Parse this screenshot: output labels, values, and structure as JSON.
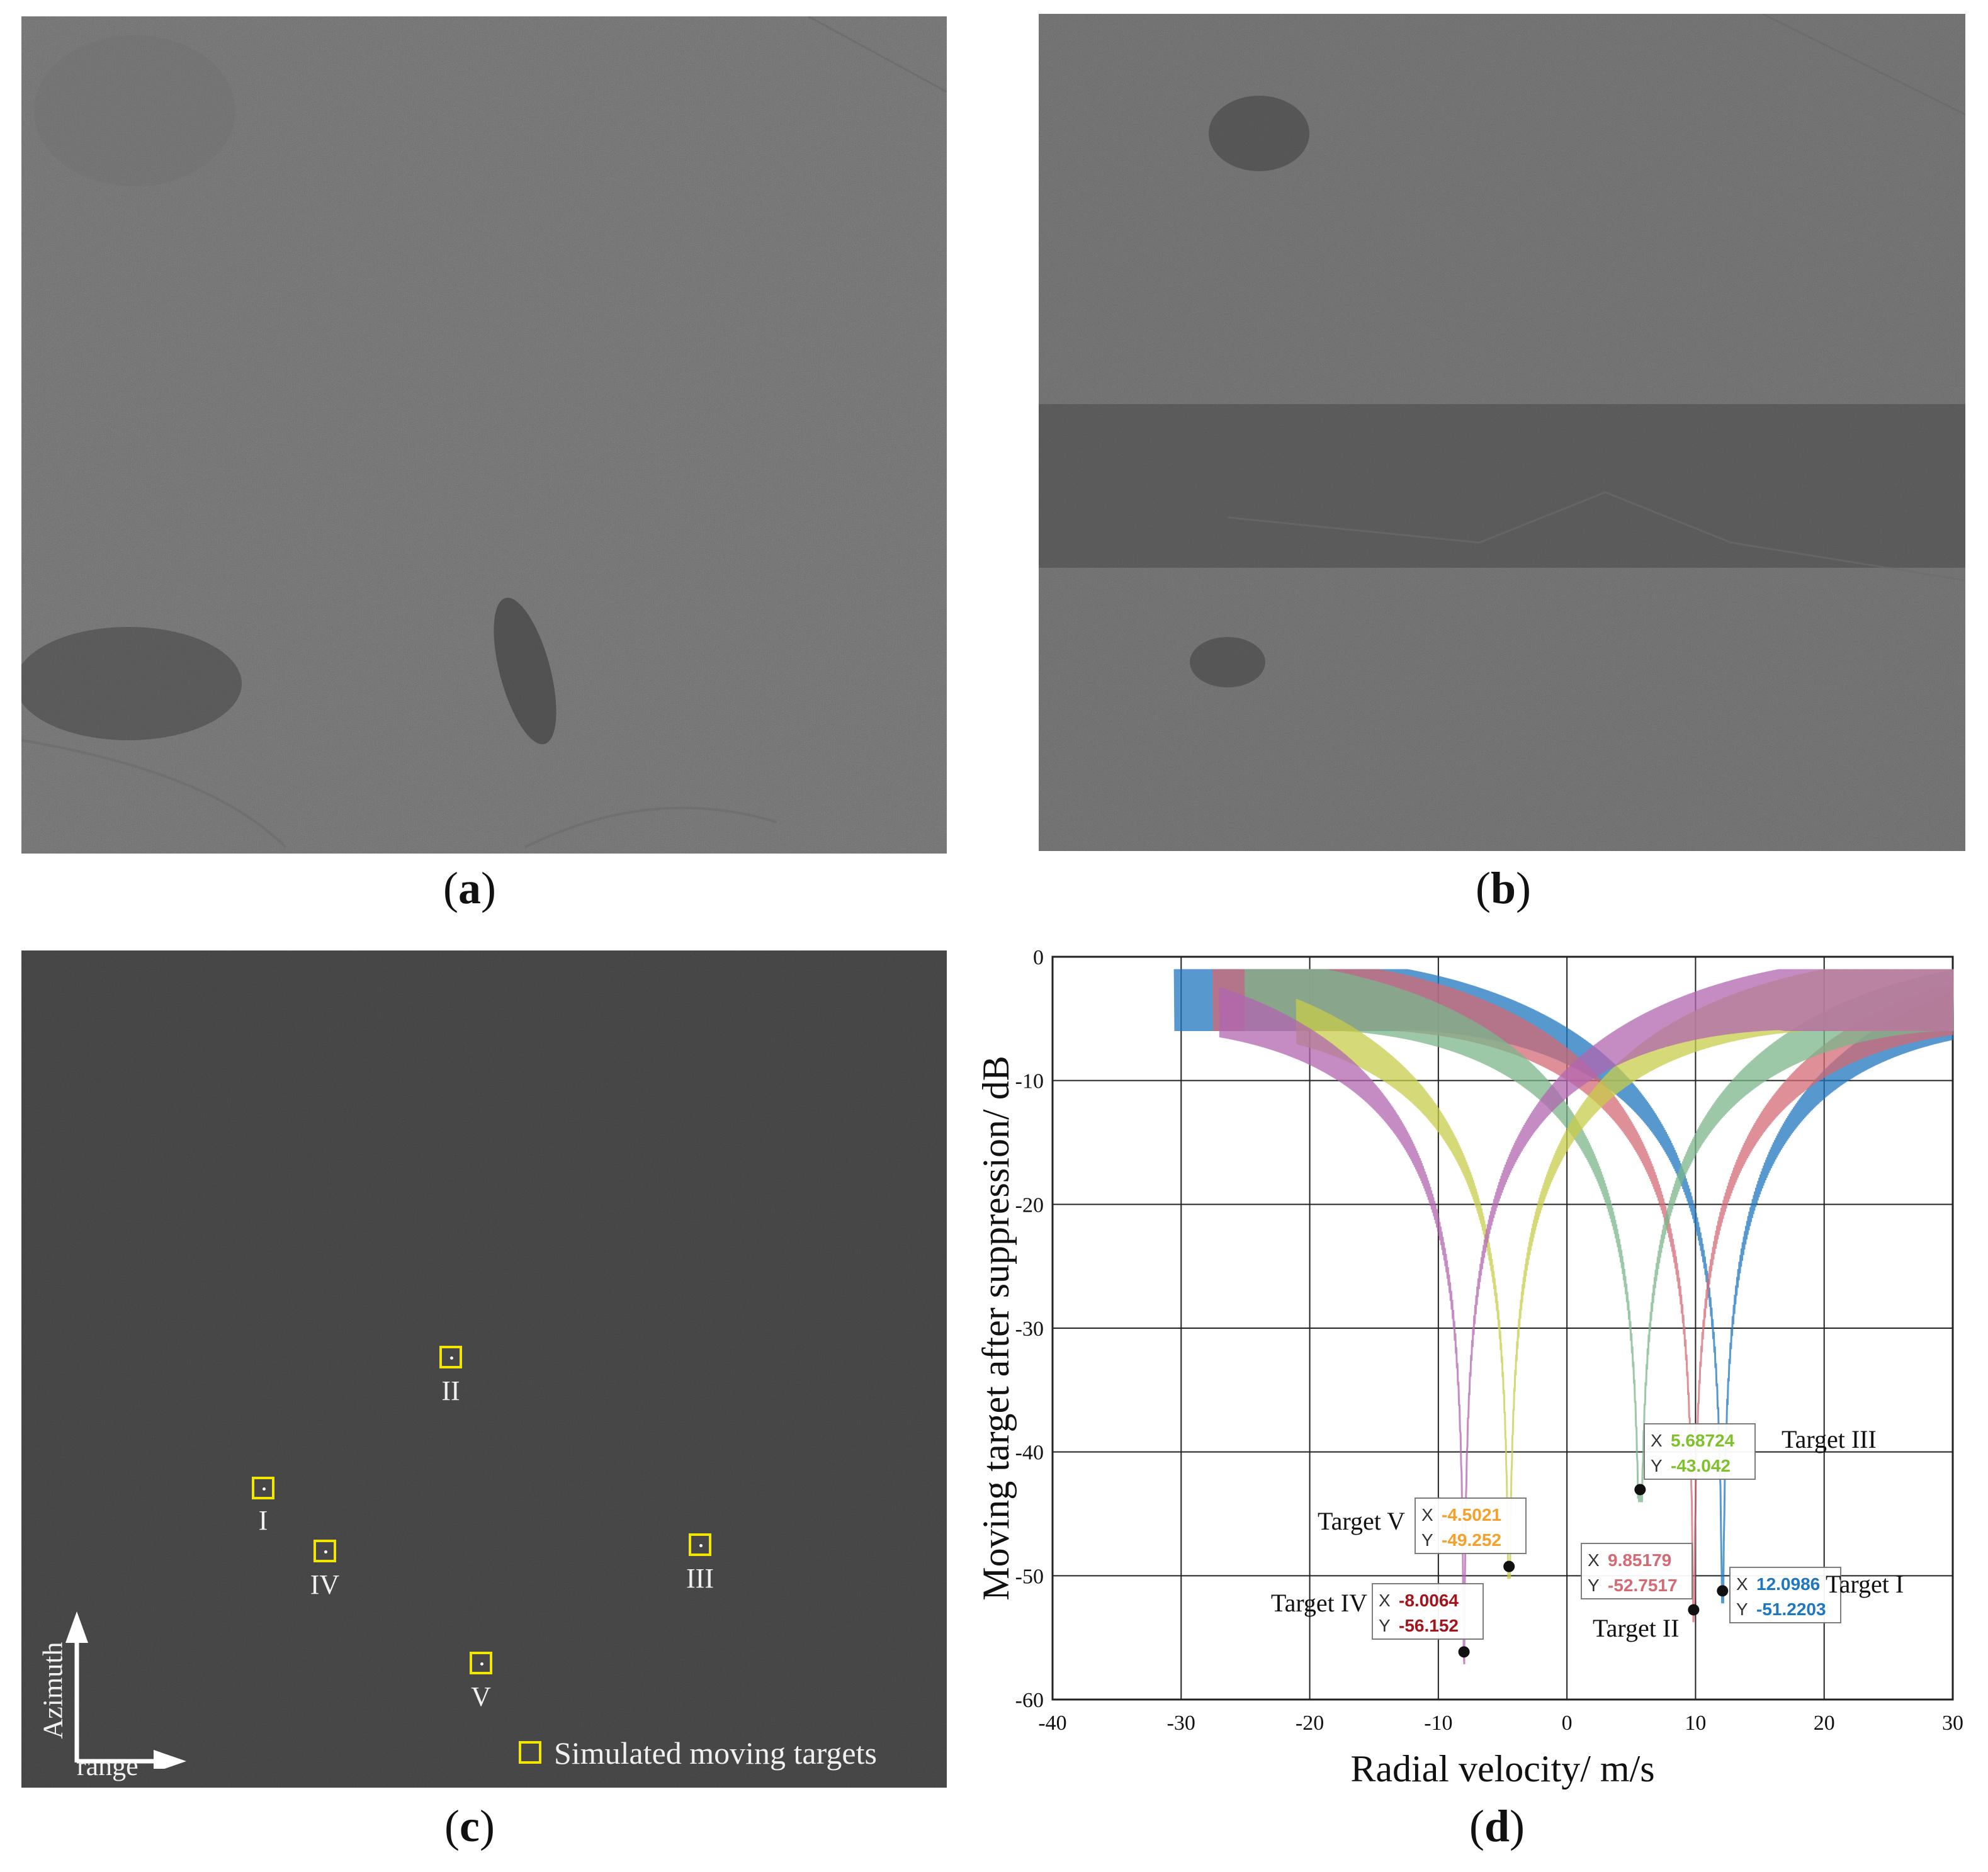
{
  "captions": {
    "a": "a",
    "b": "b",
    "c": "c",
    "d": "d"
  },
  "panel_c": {
    "targets": [
      {
        "label": "II"
      },
      {
        "label": "I"
      },
      {
        "label": "IV"
      },
      {
        "label": "III"
      },
      {
        "label": "V"
      }
    ],
    "legend": "Simulated moving targets",
    "axis_azimuth": "Azimuth",
    "axis_range": "range",
    "colors": {
      "box": "#f2e600",
      "text": "#f0f0f0"
    }
  },
  "chart_data": {
    "type": "line",
    "xlabel": "Radial velocity/ m/s",
    "ylabel": "Moving target after suppression/ dB",
    "xlim": [
      -40,
      30
    ],
    "ylim": [
      -60,
      0
    ],
    "xticks": [
      -40,
      -30,
      -20,
      -10,
      0,
      10,
      20,
      30
    ],
    "yticks": [
      0,
      -10,
      -20,
      -30,
      -40,
      -50,
      -60
    ],
    "grid": true,
    "series": [
      {
        "color": "#1f77bf",
        "notch_x": 12.0986,
        "notch_y": -51.2203,
        "x_start": -30.5,
        "x_end": 30
      },
      {
        "color": "#d36a74",
        "notch_x": 9.85179,
        "notch_y": -52.7517,
        "x_start": -27.5,
        "x_end": 30
      },
      {
        "color": "#7bb58b",
        "notch_x": 5.68724,
        "notch_y": -43.042,
        "x_start": -25,
        "x_end": 30
      },
      {
        "color": "#c8cc4a",
        "notch_x": -4.5021,
        "notch_y": -49.252,
        "x_start": -21,
        "x_end": 30
      },
      {
        "color": "#b266b0",
        "notch_x": -8.0064,
        "notch_y": -56.152,
        "x_start": -27,
        "x_end": 30
      }
    ],
    "annotations": [
      {
        "name": "Target I",
        "x_label": "X",
        "y_label": "Y",
        "x": "12.0986",
        "y": "-51.2203",
        "color": "#1f77bf"
      },
      {
        "name": "Target II",
        "x_label": "X",
        "y_label": "Y",
        "x": "9.85179",
        "y": "-52.7517",
        "color": "#d36a74"
      },
      {
        "name": "Target III",
        "x_label": "X",
        "y_label": "Y",
        "x": "5.68724",
        "y": "-43.042",
        "color": "#7fc12a"
      },
      {
        "name": "Target IV",
        "x_label": "X",
        "y_label": "Y",
        "x": "-8.0064",
        "y": "-56.152",
        "color": "#a3151c"
      },
      {
        "name": "Target V",
        "x_label": "X",
        "y_label": "Y",
        "x": "-4.5021",
        "y": "-49.252",
        "color": "#f5a02a"
      }
    ]
  }
}
